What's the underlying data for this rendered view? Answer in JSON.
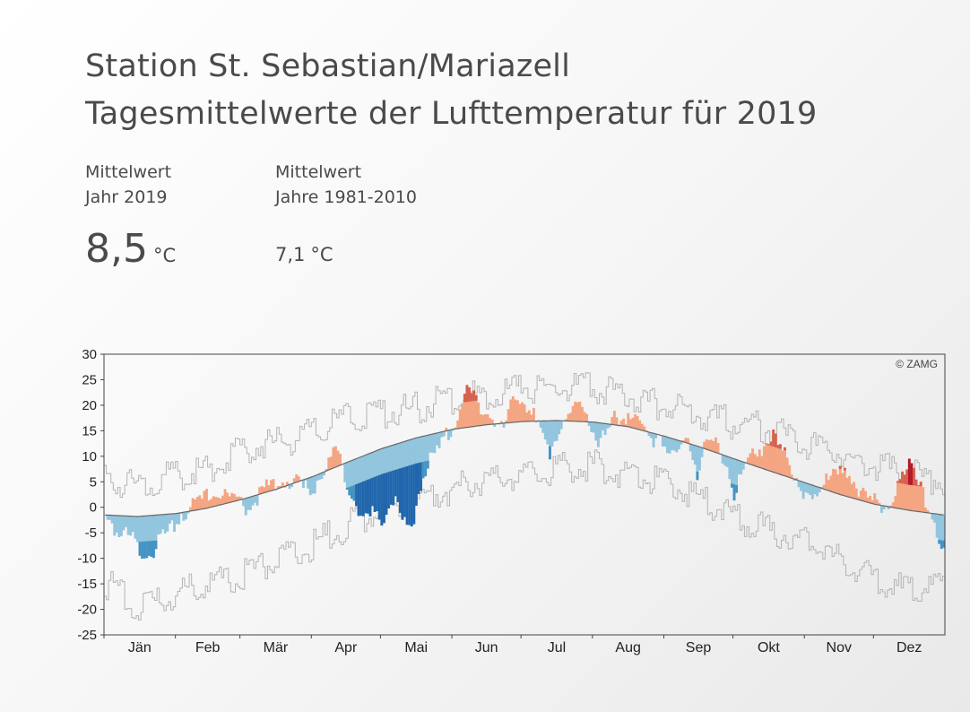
{
  "header": {
    "title_line1": "Station St. Sebastian/Mariazell",
    "title_line2": "Tagesmittelwerte der Lufttemperatur für 2019"
  },
  "stats": [
    {
      "label_line1": "Mittelwert",
      "label_line2": "Jahr 2019",
      "value": "8,5",
      "unit": "°C"
    },
    {
      "label_line1": "Mittelwert",
      "label_line2": "Jahre 1981-2010",
      "value": "7,1",
      "unit": "°C"
    }
  ],
  "chart_data": {
    "type": "bar",
    "title": "Tagesmittelwerte der Lufttemperatur für 2019",
    "ylabel": "",
    "ylim": [
      -25,
      30
    ],
    "yticks": [
      30,
      25,
      20,
      15,
      10,
      5,
      0,
      -5,
      -10,
      -15,
      -20,
      -25
    ],
    "xlim": [
      1,
      365
    ],
    "months": [
      "Jän",
      "Feb",
      "Mär",
      "Apr",
      "Mai",
      "Jun",
      "Jul",
      "Aug",
      "Sep",
      "Okt",
      "Nov",
      "Dez"
    ],
    "copyright": "© ZAMG",
    "grid": false,
    "colors": {
      "warm": "#f4a582",
      "hot": "#d6604d",
      "very_hot": "#b2182b",
      "cool": "#92c5de",
      "cold": "#4393c3",
      "very_cold": "#2166ac",
      "normal_line": "#666666",
      "envelope": "#b4b4b4"
    },
    "series": [
      {
        "role": "climate-mean",
        "points": [
          [
            1,
            -1.5
          ],
          [
            15,
            -1.8
          ],
          [
            32,
            -1.2
          ],
          [
            45,
            -0.2
          ],
          [
            60,
            1.5
          ],
          [
            75,
            3.5
          ],
          [
            91,
            6.0
          ],
          [
            106,
            8.8
          ],
          [
            121,
            11.5
          ],
          [
            136,
            13.6
          ],
          [
            152,
            15.3
          ],
          [
            167,
            16.2
          ],
          [
            182,
            16.8
          ],
          [
            197,
            17.0
          ],
          [
            213,
            16.7
          ],
          [
            228,
            15.8
          ],
          [
            244,
            13.9
          ],
          [
            258,
            12.0
          ],
          [
            274,
            9.5
          ],
          [
            289,
            7.2
          ],
          [
            305,
            4.8
          ],
          [
            320,
            2.5
          ],
          [
            335,
            0.6
          ],
          [
            350,
            -0.6
          ],
          [
            365,
            -1.5
          ]
        ]
      },
      {
        "role": "observed-max-envelope",
        "points": [
          [
            1,
            7
          ],
          [
            15,
            6
          ],
          [
            32,
            8
          ],
          [
            45,
            9
          ],
          [
            60,
            13
          ],
          [
            75,
            14
          ],
          [
            91,
            16
          ],
          [
            106,
            19
          ],
          [
            121,
            20
          ],
          [
            136,
            21
          ],
          [
            152,
            23
          ],
          [
            167,
            24
          ],
          [
            182,
            25
          ],
          [
            197,
            25
          ],
          [
            213,
            25
          ],
          [
            228,
            24
          ],
          [
            244,
            21
          ],
          [
            258,
            20
          ],
          [
            274,
            18
          ],
          [
            289,
            17
          ],
          [
            305,
            14
          ],
          [
            320,
            12
          ],
          [
            335,
            10
          ],
          [
            350,
            8
          ],
          [
            365,
            7
          ]
        ]
      },
      {
        "role": "observed-min-envelope",
        "points": [
          [
            1,
            -13
          ],
          [
            15,
            -18
          ],
          [
            32,
            -16
          ],
          [
            45,
            -13
          ],
          [
            60,
            -12
          ],
          [
            75,
            -9
          ],
          [
            91,
            -6
          ],
          [
            106,
            -2
          ],
          [
            121,
            1
          ],
          [
            136,
            3
          ],
          [
            152,
            5
          ],
          [
            167,
            7
          ],
          [
            182,
            8
          ],
          [
            197,
            9
          ],
          [
            213,
            10
          ],
          [
            228,
            8
          ],
          [
            244,
            6
          ],
          [
            258,
            4
          ],
          [
            274,
            0
          ],
          [
            289,
            -3
          ],
          [
            305,
            -5
          ],
          [
            320,
            -9
          ],
          [
            335,
            -12
          ],
          [
            350,
            -15
          ],
          [
            365,
            -13
          ]
        ]
      },
      {
        "role": "daily-mean-2019",
        "points": [
          [
            1,
            1
          ],
          [
            5,
            -3
          ],
          [
            10,
            -4
          ],
          [
            14,
            -6
          ],
          [
            18,
            -8
          ],
          [
            22,
            -7
          ],
          [
            26,
            -5
          ],
          [
            30,
            -3
          ],
          [
            34,
            0
          ],
          [
            38,
            1
          ],
          [
            42,
            2
          ],
          [
            46,
            3
          ],
          [
            50,
            4
          ],
          [
            54,
            3
          ],
          [
            58,
            2
          ],
          [
            62,
            1
          ],
          [
            66,
            3
          ],
          [
            70,
            4
          ],
          [
            74,
            6
          ],
          [
            78,
            7
          ],
          [
            82,
            6
          ],
          [
            86,
            5
          ],
          [
            90,
            4
          ],
          [
            94,
            7
          ],
          [
            98,
            10
          ],
          [
            102,
            12
          ],
          [
            106,
            5
          ],
          [
            110,
            2
          ],
          [
            114,
            -2
          ],
          [
            118,
            0
          ],
          [
            122,
            -1
          ],
          [
            126,
            3
          ],
          [
            130,
            -2
          ],
          [
            134,
            -3
          ],
          [
            138,
            6
          ],
          [
            142,
            10
          ],
          [
            146,
            12
          ],
          [
            150,
            16
          ],
          [
            154,
            19
          ],
          [
            158,
            24
          ],
          [
            162,
            22
          ],
          [
            166,
            20
          ],
          [
            170,
            18
          ],
          [
            174,
            16
          ],
          [
            178,
            22
          ],
          [
            182,
            23
          ],
          [
            186,
            20
          ],
          [
            190,
            15
          ],
          [
            194,
            12
          ],
          [
            198,
            17
          ],
          [
            202,
            19
          ],
          [
            206,
            21
          ],
          [
            210,
            20
          ],
          [
            214,
            15
          ],
          [
            218,
            14
          ],
          [
            222,
            18
          ],
          [
            226,
            19
          ],
          [
            230,
            20
          ],
          [
            234,
            16
          ],
          [
            238,
            14
          ],
          [
            242,
            16
          ],
          [
            246,
            11
          ],
          [
            250,
            12
          ],
          [
            254,
            15
          ],
          [
            258,
            8
          ],
          [
            262,
            14
          ],
          [
            266,
            13
          ],
          [
            270,
            11
          ],
          [
            274,
            4
          ],
          [
            278,
            8
          ],
          [
            282,
            11
          ],
          [
            286,
            13
          ],
          [
            290,
            15
          ],
          [
            294,
            12
          ],
          [
            298,
            10
          ],
          [
            302,
            6
          ],
          [
            306,
            3
          ],
          [
            310,
            2
          ],
          [
            314,
            8
          ],
          [
            318,
            9
          ],
          [
            322,
            7
          ],
          [
            326,
            4
          ],
          [
            330,
            6
          ],
          [
            334,
            3
          ],
          [
            338,
            -1
          ],
          [
            342,
            1
          ],
          [
            346,
            8
          ],
          [
            350,
            10
          ],
          [
            354,
            5
          ],
          [
            358,
            2
          ],
          [
            362,
            -3
          ],
          [
            365,
            -7
          ]
        ]
      }
    ]
  }
}
